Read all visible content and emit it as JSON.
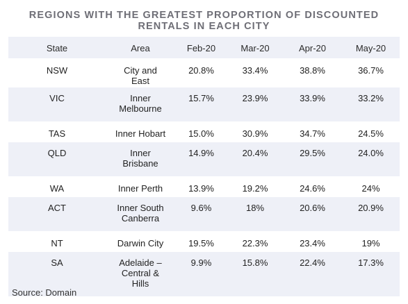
{
  "title": {
    "line1": "REGIONS WITH THE GREATEST PROPORTION OF DISCOUNTED",
    "line2": "RENTALS IN EACH CITY"
  },
  "table": {
    "headers": [
      "State",
      "Area",
      "Feb-20",
      "Mar-20",
      "Apr-20",
      "May-20"
    ],
    "rows": [
      {
        "state": "NSW",
        "area": "City and East",
        "feb": "20.8%",
        "mar": "33.4%",
        "apr": "38.8%",
        "may": "36.7%"
      },
      {
        "state": "VIC",
        "area": "Inner Melbourne",
        "feb": "15.7%",
        "mar": "23.9%",
        "apr": "33.9%",
        "may": "33.2%"
      },
      {
        "state": "TAS",
        "area": "Inner Hobart",
        "feb": "15.0%",
        "mar": "30.9%",
        "apr": "34.7%",
        "may": "24.5%"
      },
      {
        "state": "QLD",
        "area": "Inner Brisbane",
        "feb": "14.9%",
        "mar": "20.4%",
        "apr": "29.5%",
        "may": "24.0%"
      },
      {
        "state": "WA",
        "area": "Inner Perth",
        "feb": "13.9%",
        "mar": "19.2%",
        "apr": "24.6%",
        "may": "24%"
      },
      {
        "state": "ACT",
        "area": "Inner South Canberra",
        "feb": "9.6%",
        "mar": "18%",
        "apr": "20.6%",
        "may": "20.9%"
      },
      {
        "state": "NT",
        "area": "Darwin City",
        "feb": "19.5%",
        "mar": "22.3%",
        "apr": "23.4%",
        "may": "19%"
      },
      {
        "state": "SA",
        "area": "Adelaide – Central & Hills",
        "feb": "9.9%",
        "mar": "15.8%",
        "apr": "22.4%",
        "may": "17.3%"
      }
    ]
  },
  "source": "Source: Domain",
  "colors": {
    "shade": "#eef0f7",
    "title": "#6e6e76"
  }
}
